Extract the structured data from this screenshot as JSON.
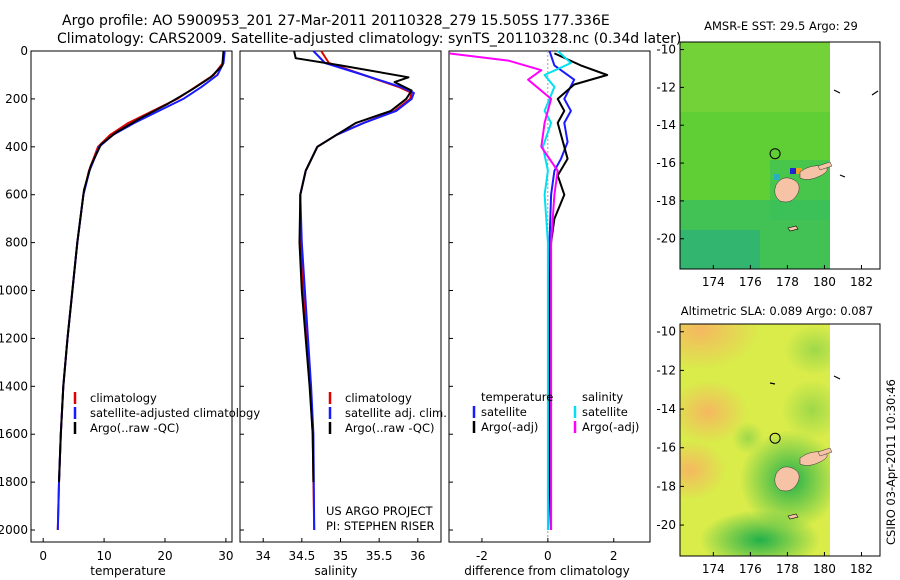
{
  "title_line1": "Argo profile: AO 5900953_201 27-Mar-2011 20110328_279 15.505S 177.336E",
  "title_line2": "Climatology: CARS2009. Satellite-adjusted climatology: synTS_20110328.nc (0.34d later)",
  "chart_data": [
    {
      "type": "line",
      "xlabel": "temperature",
      "xlim": [
        -2,
        31
      ],
      "xticks": [
        0,
        10,
        20,
        30
      ],
      "ylim": [
        2050,
        0
      ],
      "yticks": [
        0,
        200,
        400,
        600,
        800,
        1000,
        1200,
        1400,
        1600,
        1800,
        2000
      ],
      "legend": [
        "climatology",
        "satellite-adjusted climatology",
        "Argo(..raw -QC)"
      ],
      "series": [
        {
          "name": "climatology",
          "color": "#e00000",
          "x": [
            29.8,
            29.5,
            28,
            25,
            22,
            18,
            14,
            11,
            9,
            7.5,
            6.6,
            5.6,
            4.8,
            4,
            3.3,
            2.9,
            2.6,
            2.4
          ],
          "y": [
            0,
            50,
            100,
            150,
            200,
            250,
            300,
            350,
            400,
            500,
            600,
            800,
            1000,
            1200,
            1400,
            1600,
            1800,
            2000
          ]
        },
        {
          "name": "satellite-adjusted climatology",
          "color": "#1a1aff",
          "x": [
            29.8,
            29.6,
            28.6,
            26,
            23,
            19,
            15,
            11.5,
            9.2,
            7.6,
            6.6,
            5.6,
            4.8,
            4,
            3.3,
            2.9,
            2.6,
            2.4
          ],
          "y": [
            0,
            50,
            100,
            150,
            200,
            250,
            300,
            350,
            400,
            500,
            600,
            800,
            1000,
            1200,
            1400,
            1600,
            1800,
            2000
          ]
        },
        {
          "name": "Argo(..raw -QC)",
          "color": "#000000",
          "x": [
            29.6,
            29.5,
            29.4,
            27.5,
            24.5,
            20.5,
            16,
            12,
            9.5,
            7.8,
            6.7,
            5.6,
            4.8,
            4,
            3.3,
            2.9,
            2.6
          ],
          "y": [
            0,
            30,
            60,
            110,
            160,
            220,
            280,
            340,
            390,
            480,
            580,
            800,
            1000,
            1200,
            1400,
            1600,
            1800
          ]
        }
      ]
    },
    {
      "type": "line",
      "xlabel": "salinity",
      "xlim": [
        33.7,
        36.3
      ],
      "xticks": [
        34,
        34.5,
        35,
        35.5,
        36
      ],
      "ylim": [
        2050,
        0
      ],
      "legend": [
        "climatology",
        "satellite adj. clim.",
        "Argo(..raw -QC)"
      ],
      "series": [
        {
          "name": "climatology",
          "color": "#e00000",
          "x": [
            34.75,
            34.85,
            35.3,
            35.75,
            35.92,
            35.9,
            35.7,
            35.3,
            34.95,
            34.7,
            34.55,
            34.48,
            34.48,
            34.52,
            34.57,
            34.61,
            34.64,
            34.66
          ],
          "y": [
            0,
            50,
            100,
            150,
            175,
            200,
            250,
            300,
            350,
            400,
            500,
            600,
            800,
            1000,
            1200,
            1400,
            1600,
            2000
          ]
        },
        {
          "name": "satellite adj. clim.",
          "color": "#1a1aff",
          "x": [
            34.65,
            34.8,
            35.3,
            35.78,
            35.95,
            35.92,
            35.72,
            35.3,
            34.95,
            34.7,
            34.55,
            34.48,
            34.5,
            34.54,
            34.58,
            34.62,
            34.65,
            34.66
          ],
          "y": [
            0,
            50,
            100,
            150,
            175,
            200,
            250,
            300,
            350,
            400,
            500,
            600,
            800,
            1000,
            1200,
            1400,
            1600,
            2000
          ]
        },
        {
          "name": "Argo(..raw -QC)",
          "color": "#000000",
          "x": [
            34.4,
            34.42,
            35.0,
            35.88,
            35.7,
            35.92,
            35.85,
            35.65,
            35.2,
            34.95,
            34.7,
            34.55,
            34.48,
            34.47,
            34.5,
            34.55,
            34.6,
            34.64,
            34.65
          ],
          "y": [
            0,
            30,
            60,
            110,
            130,
            165,
            200,
            250,
            300,
            350,
            400,
            500,
            600,
            800,
            1000,
            1200,
            1400,
            1600,
            1800
          ]
        }
      ]
    },
    {
      "type": "line",
      "xlabel": "difference from climatology",
      "xlim": [
        -3,
        3.1
      ],
      "xticks": [
        -2,
        0,
        2
      ],
      "ylim": [
        2050,
        0
      ],
      "legend_left_header": "temperature",
      "legend_right_header": "salinity",
      "legend": [
        "satellite",
        "Argo(-adj)",
        "satellite",
        "Argo(-adj)"
      ],
      "series": [
        {
          "name": "temperature satellite",
          "color": "#1a1aff",
          "x": [
            0.05,
            0.2,
            0.8,
            0.5,
            0.7,
            0.5,
            0.6,
            0.4,
            0.2,
            0.1,
            0.05,
            0.02,
            0.02,
            0.01,
            0.01,
            0.01,
            0.01
          ],
          "y": [
            0,
            60,
            120,
            200,
            250,
            300,
            380,
            450,
            500,
            600,
            800,
            1000,
            1200,
            1400,
            1600,
            1800,
            2000
          ]
        },
        {
          "name": "temperature Argo(-adj)",
          "color": "#000000",
          "x": [
            0.2,
            1.0,
            1.8,
            0.8,
            0.3,
            0.5,
            0.3,
            0.4,
            0.6,
            0.3,
            0.5,
            0.2,
            0.1,
            0.05,
            0.05,
            0.05,
            0.1
          ],
          "y": [
            10,
            60,
            100,
            140,
            200,
            250,
            300,
            350,
            450,
            520,
            600,
            700,
            800,
            1000,
            1400,
            1800,
            2000
          ]
        },
        {
          "name": "salinity satellite",
          "color": "#00e0f0",
          "x": [
            0.3,
            0.7,
            -0.1,
            0.2,
            -0.1,
            0.1,
            -0.15,
            0.0,
            -0.1,
            0.0,
            0.0,
            0.0,
            0.0
          ],
          "y": [
            0,
            50,
            100,
            150,
            250,
            300,
            400,
            500,
            600,
            800,
            1200,
            1600,
            2000
          ]
        },
        {
          "name": "salinity Argo(-adj)",
          "color": "#ff00ff",
          "x": [
            -3.0,
            -1.2,
            -0.2,
            -0.6,
            0.1,
            -0.1,
            -0.2,
            0.3,
            0.2,
            0.1,
            0.1,
            0.1,
            0.1,
            0.1
          ],
          "y": [
            10,
            40,
            80,
            120,
            200,
            300,
            400,
            500,
            600,
            800,
            1000,
            1400,
            1800,
            2000
          ]
        }
      ]
    },
    {
      "type": "heatmap",
      "title": "AMSR-E SST: 29.5 Argo: 29",
      "xlim": [
        172.2,
        183
      ],
      "ylim": [
        -21.6,
        -9.6
      ],
      "xticks": [
        174,
        176,
        178,
        180,
        182
      ],
      "yticks": [
        -10,
        -12,
        -14,
        -16,
        -18,
        -20
      ],
      "float_position": [
        177.336,
        -15.505
      ]
    },
    {
      "type": "heatmap",
      "title": "Altimetric SLA: 0.089 Argo: 0.087",
      "xlim": [
        172.2,
        183
      ],
      "ylim": [
        -21.6,
        -9.6
      ],
      "xticks": [
        174,
        176,
        178,
        180,
        182
      ],
      "yticks": [
        -10,
        -12,
        -14,
        -16,
        -18,
        -20
      ],
      "float_position": [
        177.336,
        -15.505
      ]
    }
  ],
  "credit_block": {
    "line1": "US ARGO PROJECT",
    "line2": "PI: STEPHEN RISER"
  },
  "stamp": "CSIRO 03-Apr-2011 10:30:46",
  "colors": {
    "climatology": "#e00000",
    "satellite": "#1a1aff",
    "argo": "#000000",
    "sat_sal": "#00e0f0",
    "argo_sal": "#ff00ff",
    "land": "#f7c3a6"
  }
}
